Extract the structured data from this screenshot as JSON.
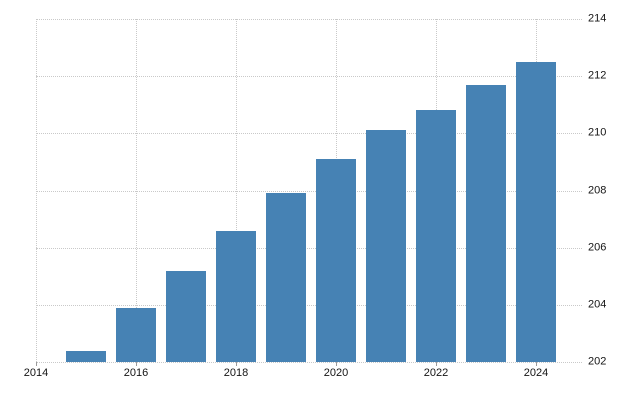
{
  "chart_data": {
    "type": "bar",
    "x": [
      2015,
      2016,
      2017,
      2018,
      2019,
      2020,
      2021,
      2022,
      2023,
      2024
    ],
    "values": [
      202.4,
      203.9,
      205.2,
      206.6,
      207.9,
      209.1,
      210.1,
      210.8,
      211.7,
      212.5
    ],
    "x_ticks": [
      2014,
      2016,
      2018,
      2020,
      2022,
      2024
    ],
    "y_ticks": [
      202,
      204,
      206,
      208,
      210,
      212,
      214
    ],
    "xlim": [
      2014,
      2024.92
    ],
    "ylim": [
      202,
      214
    ],
    "bar_color": "#4682B4",
    "gridline_color": "#c9c9c9",
    "tick_label_color": "#141414",
    "background_color": "#ffffff",
    "grid": "dotted",
    "y_axis_side": "right",
    "legend": null,
    "title": null,
    "xlabel": null,
    "ylabel": null
  }
}
